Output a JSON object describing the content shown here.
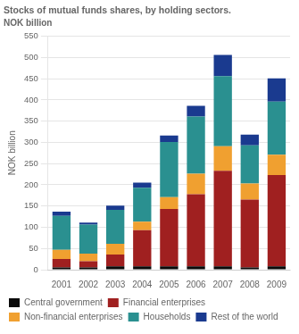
{
  "chart_data": {
    "type": "bar",
    "title": "Stocks of mutual funds shares, by holding sectors.",
    "subtitle": "NOK billion",
    "y_label": "NOK billion",
    "categories": [
      "2001",
      "2002",
      "2003",
      "2004",
      "2005",
      "2006",
      "2007",
      "2008",
      "2009"
    ],
    "series": [
      {
        "name": "Central government",
        "color": "#0a0a0a",
        "values": [
          5,
          5,
          8,
          8,
          8,
          8,
          8,
          5,
          8
        ]
      },
      {
        "name": "Financial enterprises",
        "color": "#a02020",
        "values": [
          20,
          15,
          28,
          85,
          135,
          170,
          225,
          160,
          215
        ]
      },
      {
        "name": "Non-financial enterprises",
        "color": "#f0a030",
        "values": [
          22,
          18,
          25,
          20,
          28,
          48,
          58,
          38,
          48
        ]
      },
      {
        "name": "Households",
        "color": "#2a9090",
        "values": [
          80,
          68,
          80,
          80,
          130,
          135,
          165,
          90,
          125
        ]
      },
      {
        "name": "Rest of the world",
        "color": "#1a3a8f",
        "values": [
          10,
          5,
          10,
          12,
          15,
          25,
          50,
          25,
          55
        ]
      }
    ],
    "stacked": true,
    "ylim": [
      0,
      550
    ],
    "yticks": [
      0,
      50,
      100,
      150,
      200,
      250,
      300,
      350,
      400,
      450,
      500,
      550
    ],
    "grid": true,
    "legend": "bottom"
  }
}
